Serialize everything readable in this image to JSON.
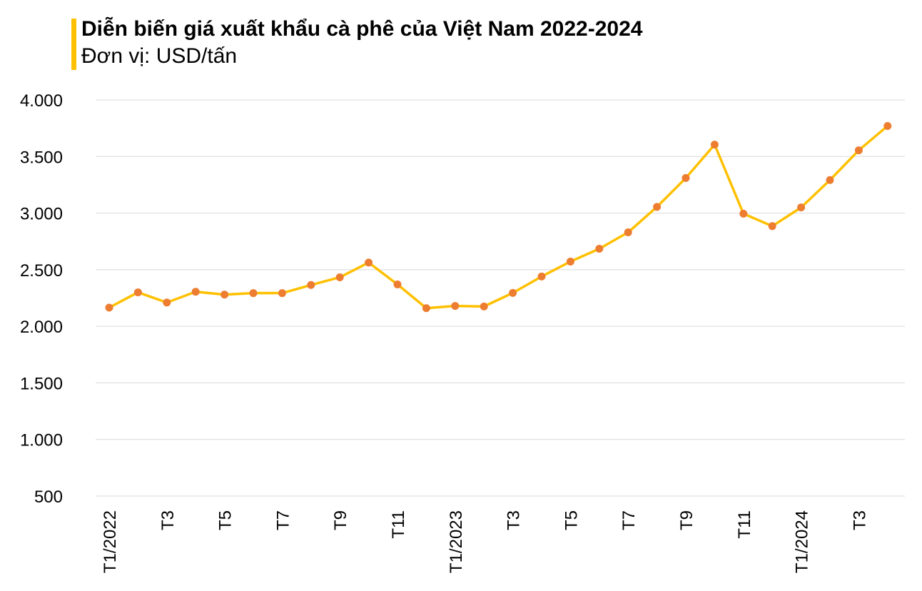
{
  "header": {
    "title": "Diễn biến giá xuất khẩu cà phê của Việt Nam 2022-2024",
    "subtitle": "Đơn vị: USD/tấn"
  },
  "colors": {
    "accent_bar": "#FFC000",
    "line": "#FFC000",
    "marker": "#ED7D31",
    "grid": "#D9D9D9",
    "text": "#000000"
  },
  "chart_data": {
    "type": "line",
    "title": "Diễn biến giá xuất khẩu cà phê của Việt Nam 2022-2024",
    "subtitle": "Đơn vị: USD/tấn",
    "xlabel": "",
    "ylabel": "",
    "ylim": [
      500,
      4000
    ],
    "yticks": [
      500,
      1000,
      1500,
      2000,
      2500,
      3000,
      3500,
      4000
    ],
    "ytick_labels": [
      "500",
      "1.000",
      "1.500",
      "2.000",
      "2.500",
      "3.000",
      "3.500",
      "4.000"
    ],
    "grid": true,
    "legend": "none",
    "x_labels": [
      "T1/2022",
      "",
      "T3",
      "",
      "T5",
      "",
      "T7",
      "",
      "T9",
      "",
      "T11",
      "",
      "T1/2023",
      "",
      "T3",
      "",
      "T5",
      "",
      "T7",
      "",
      "T9",
      "",
      "T11",
      "",
      "T1/2024",
      "",
      "T3",
      ""
    ],
    "series": [
      {
        "values": [
          2165,
          2300,
          2210,
          2305,
          2280,
          2293,
          2293,
          2365,
          2433,
          2563,
          2370,
          2160,
          2180,
          2175,
          2295,
          2440,
          2572,
          2685,
          2830,
          3055,
          3310,
          3605,
          2995,
          2885,
          3050,
          3292,
          3555,
          3770
        ]
      }
    ]
  }
}
